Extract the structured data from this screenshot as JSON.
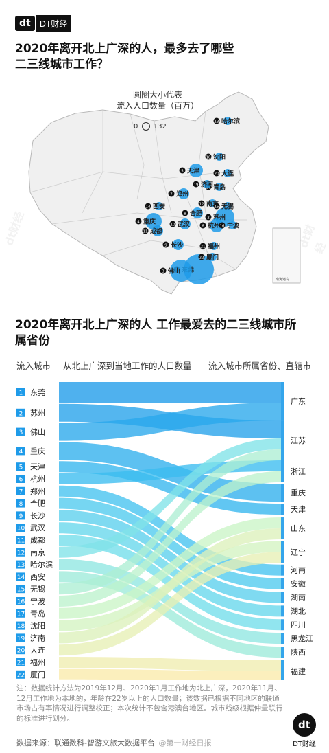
{
  "brand": {
    "mark": "dt",
    "name": "DT财经",
    "footer_name": "DT财经"
  },
  "map_section": {
    "title": "2020年离开北上广深的人，最多去了哪些二三线城市工作？",
    "legend_title_line1": "圆圈大小代表",
    "legend_title_line2": "流入人口数量（百万）",
    "legend_min": "0",
    "legend_max": "132",
    "south_sea_label": "南海诸岛"
  },
  "chart_data": {
    "type": "sankey",
    "title": "2020年离开北上广深的人 工作最爱去的二三线城市所属省份",
    "left_header": "流入城市",
    "middle_header": "从北上广深到当地工作的人口数量",
    "right_header": "流入城市所属省份、直辖市",
    "cities": [
      {
        "rank": 1,
        "name": "东莞",
        "province": "广东"
      },
      {
        "rank": 2,
        "name": "苏州",
        "province": "江苏"
      },
      {
        "rank": 3,
        "name": "佛山",
        "province": "广东"
      },
      {
        "rank": 4,
        "name": "重庆",
        "province": "重庆"
      },
      {
        "rank": 5,
        "name": "天津",
        "province": "天津"
      },
      {
        "rank": 6,
        "name": "杭州",
        "province": "浙江"
      },
      {
        "rank": 7,
        "name": "郑州",
        "province": "河南"
      },
      {
        "rank": 8,
        "name": "合肥",
        "province": "安徽"
      },
      {
        "rank": 9,
        "name": "长沙",
        "province": "湖南"
      },
      {
        "rank": 10,
        "name": "武汉",
        "province": "湖北"
      },
      {
        "rank": 11,
        "name": "成都",
        "province": "四川"
      },
      {
        "rank": 12,
        "name": "南京",
        "province": "江苏"
      },
      {
        "rank": 13,
        "name": "哈尔滨",
        "province": "黑龙江"
      },
      {
        "rank": 14,
        "name": "西安",
        "province": "陕西"
      },
      {
        "rank": 15,
        "name": "无锡",
        "province": "江苏"
      },
      {
        "rank": 16,
        "name": "宁波",
        "province": "浙江"
      },
      {
        "rank": 17,
        "name": "青岛",
        "province": "山东"
      },
      {
        "rank": 18,
        "name": "沈阳",
        "province": "辽宁"
      },
      {
        "rank": 19,
        "name": "济南",
        "province": "山东"
      },
      {
        "rank": 20,
        "name": "大连",
        "province": "辽宁"
      },
      {
        "rank": 21,
        "name": "福州",
        "province": "福建"
      },
      {
        "rank": 22,
        "name": "厦门",
        "province": "福建"
      }
    ],
    "provinces": [
      "广东",
      "江苏",
      "浙江",
      "重庆",
      "天津",
      "山东",
      "辽宁",
      "河南",
      "安徽",
      "湖南",
      "湖北",
      "四川",
      "黑龙江",
      "陕西",
      "福建"
    ]
  },
  "note": "注：数据统计方法为2019年12月、2020年1月工作地为北上广深，2020年11月、12月工作地为本地的，年龄在22岁以上的人口数量；该数据已根据不同地区的联通市场占有率情况进行调整校正；本次统计不包含港澳台地区。城市线级根据仲量联行的标准进行划分。",
  "source": "数据来源：联通数科-智游文旅大数据平台",
  "source_watermark": "@第一财经日报"
}
